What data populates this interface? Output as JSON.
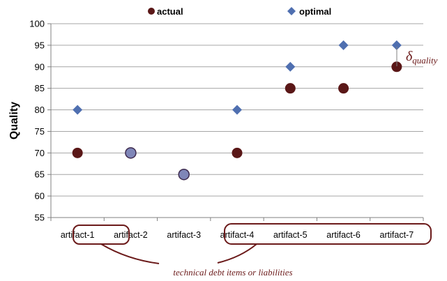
{
  "chart_data": {
    "type": "scatter",
    "ylabel": "Quality",
    "ylim": [
      55,
      100
    ],
    "yticks": [
      55,
      60,
      65,
      70,
      75,
      80,
      85,
      90,
      95,
      100
    ],
    "grid": true,
    "legend_position": "top",
    "categories": [
      "artifact-1",
      "artifact-2",
      "artifact-3",
      "artifact-4",
      "artifact-5",
      "artifact-6",
      "artifact-7"
    ],
    "series": [
      {
        "name": "actual",
        "marker": "circle",
        "color": "#5a1717",
        "values": [
          70,
          70,
          65,
          70,
          85,
          85,
          90
        ]
      },
      {
        "name": "optimal",
        "marker": "diamond",
        "color": "#4f6fb0",
        "values": [
          80,
          70,
          65,
          80,
          90,
          95,
          95
        ]
      }
    ],
    "annotations": {
      "delta_symbol": "δ",
      "delta_subscript": "quality",
      "group_caption": "technical debt items or liabilities"
    },
    "colors": {
      "annotation": "#6b1a1a",
      "grid": "#a6a6a6",
      "axis": "#808080"
    }
  }
}
